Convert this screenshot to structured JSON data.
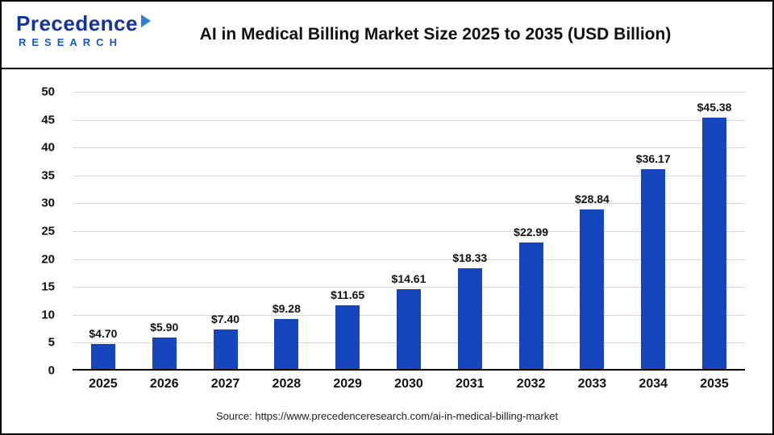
{
  "header": {
    "logo": {
      "line1": "Precedence",
      "line2": "RESEARCH"
    },
    "title": "AI in Medical Billing Market Size 2025 to 2035 (USD Billion)"
  },
  "chart_data": {
    "type": "bar",
    "title": "AI in Medical Billing Market Size 2025 to 2035 (USD Billion)",
    "categories": [
      "2025",
      "2026",
      "2027",
      "2028",
      "2029",
      "2030",
      "2031",
      "2032",
      "2033",
      "2034",
      "2035"
    ],
    "values": [
      4.7,
      5.9,
      7.4,
      9.28,
      11.65,
      14.61,
      18.33,
      22.99,
      28.84,
      36.17,
      45.38
    ],
    "value_labels": [
      "$4.70",
      "$5.90",
      "$7.40",
      "$9.28",
      "$11.65",
      "$14.61",
      "$18.33",
      "$22.99",
      "$28.84",
      "$36.17",
      "$45.38"
    ],
    "xlabel": "",
    "ylabel": "",
    "ylim": [
      0,
      50
    ],
    "ytick_step": 5,
    "ytick_labels": [
      "0",
      "5",
      "10",
      "15",
      "20",
      "25",
      "30",
      "35",
      "40",
      "45",
      "50"
    ],
    "grid": true,
    "legend": false,
    "bar_color": "#1546bd"
  },
  "footer": {
    "source": "Source: https://www.precedenceresearch.com/ai-in-medical-billing-market"
  }
}
